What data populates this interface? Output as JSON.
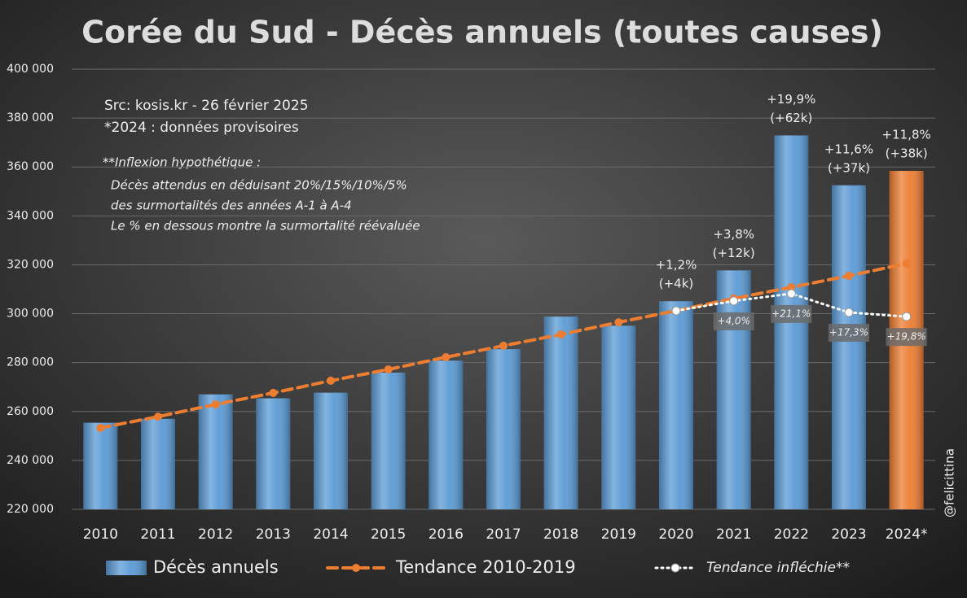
{
  "chart_data": {
    "type": "bar",
    "title": "Corée du Sud - Décès annuels (toutes causes)",
    "categories": [
      "2010",
      "2011",
      "2012",
      "2013",
      "2014",
      "2015",
      "2016",
      "2017",
      "2018",
      "2019",
      "2020",
      "2021",
      "2022",
      "2023",
      "2024*"
    ],
    "series": [
      {
        "name": "Décès annuels",
        "type": "bar",
        "color": "#5b9bd5",
        "point_colors": [
          "#5b9bd5",
          "#5b9bd5",
          "#5b9bd5",
          "#5b9bd5",
          "#5b9bd5",
          "#5b9bd5",
          "#5b9bd5",
          "#5b9bd5",
          "#5b9bd5",
          "#5b9bd5",
          "#5b9bd5",
          "#5b9bd5",
          "#5b9bd5",
          "#5b9bd5",
          "#ed7d31"
        ],
        "values": [
          255400,
          257000,
          267000,
          265400,
          267700,
          275900,
          280800,
          285500,
          298800,
          295100,
          305100,
          317700,
          372900,
          352500,
          358400
        ]
      },
      {
        "name": "Tendance 2010-2019",
        "type": "line",
        "color": "#ed7d31",
        "dash": "dashed",
        "values": [
          253300,
          257900,
          262900,
          267600,
          272600,
          277200,
          282200,
          286900,
          291500,
          296500,
          301200,
          306200,
          310800,
          315500,
          320500
        ]
      },
      {
        "name": "Tendance infléchie**",
        "type": "line",
        "color": "#ffffff",
        "dash": "dotted",
        "values": [
          null,
          null,
          null,
          null,
          null,
          null,
          null,
          null,
          null,
          null,
          301200,
          305200,
          308200,
          300500,
          298800
        ]
      }
    ],
    "bar_labels": [
      null,
      null,
      null,
      null,
      null,
      null,
      null,
      null,
      null,
      null,
      [
        "+1,2%",
        "(+4k)"
      ],
      [
        "+3,8%",
        "(+12k)"
      ],
      [
        "+19,9%",
        "(+62k)"
      ],
      [
        "+11,6%",
        "(+37k)"
      ],
      [
        "+11,8%",
        "(+38k)"
      ]
    ],
    "inflection_labels": [
      null,
      null,
      null,
      null,
      null,
      null,
      null,
      null,
      null,
      null,
      null,
      "+4,0%",
      "+21,1%",
      "+17,3%",
      "+19,8%"
    ],
    "notes": [
      "Src: kosis.kr - 26 février 2025",
      "*2024 : données provisoires"
    ],
    "inflection_note": [
      "**Inflexion hypothétique :",
      "Décès attendus en déduisant 20%/15%/10%/5%",
      "des surmortalités des années A-1 à A-4",
      "Le % en dessous montre la surmortalité réévaluée"
    ],
    "credit": "@felicittina",
    "ylim": [
      220000,
      400000
    ],
    "yticks": [
      {
        "value": 220000,
        "label": "220 000"
      },
      {
        "value": 240000,
        "label": "240 000"
      },
      {
        "value": 260000,
        "label": "260 000"
      },
      {
        "value": 280000,
        "label": "280 000"
      },
      {
        "value": 300000,
        "label": "300 000"
      },
      {
        "value": 320000,
        "label": "320 000"
      },
      {
        "value": 340000,
        "label": "340 000"
      },
      {
        "value": 360000,
        "label": "360 000"
      },
      {
        "value": 380000,
        "label": "380 000"
      },
      {
        "value": 400000,
        "label": "400 000"
      }
    ],
    "grid": true,
    "legend": "bottom"
  }
}
